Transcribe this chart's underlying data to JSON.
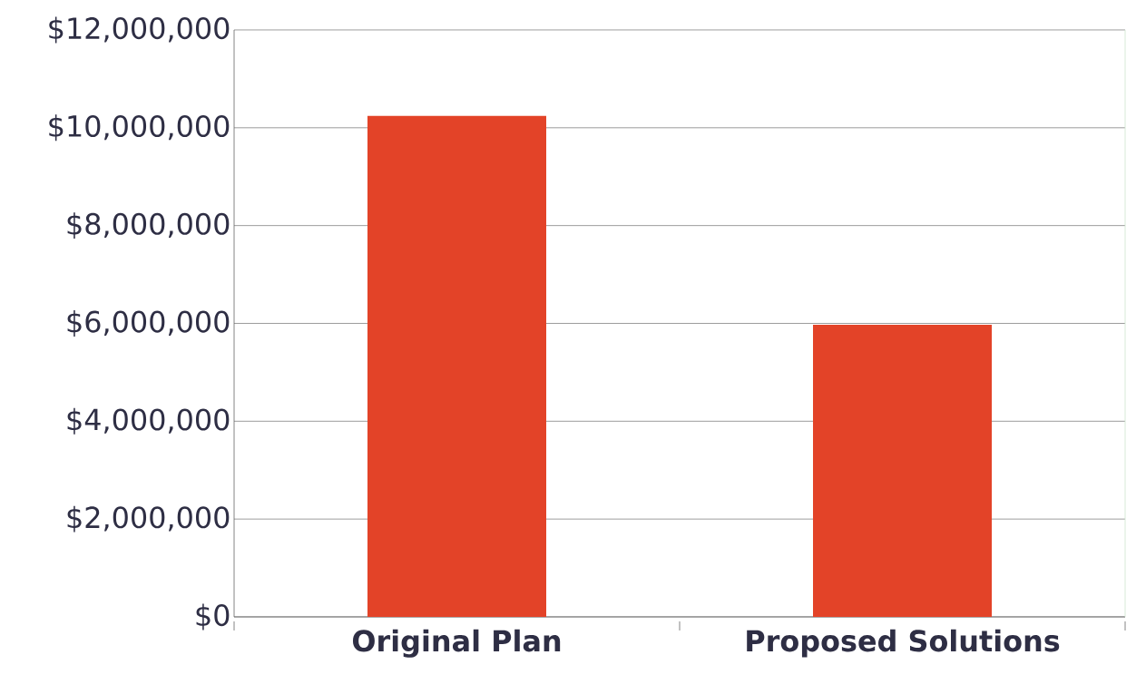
{
  "chart_data": {
    "type": "bar",
    "categories": [
      "Original Plan",
      "Proposed Solutions"
    ],
    "values": [
      10240000,
      5970000
    ],
    "color": "#e34328",
    "ylim": [
      0,
      12000000
    ],
    "yticks": [
      {
        "value": 0,
        "label": "$0"
      },
      {
        "value": 2000000,
        "label": "$2,000,000"
      },
      {
        "value": 4000000,
        "label": "$4,000,000"
      },
      {
        "value": 6000000,
        "label": "$6,000,000"
      },
      {
        "value": 8000000,
        "label": "$8,000,000"
      },
      {
        "value": 10000000,
        "label": "$10,000,000"
      },
      {
        "value": 12000000,
        "label": "$12,000,000"
      }
    ],
    "grid": "y"
  }
}
